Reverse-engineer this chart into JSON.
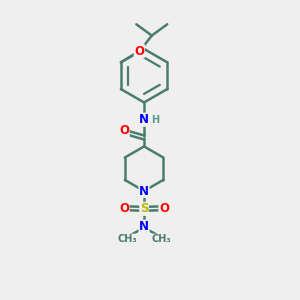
{
  "background_color": "#efefef",
  "bond_color": "#4a7c6f",
  "bond_width": 1.8,
  "atom_colors": {
    "O": "#ff0000",
    "N": "#0000ff",
    "S": "#bbbb00",
    "C": "#4a7c6f",
    "H": "#5a9a8a"
  },
  "font_size_atom": 8.5,
  "font_size_small": 7.0,
  "xlim": [
    0,
    10
  ],
  "ylim": [
    0,
    10
  ]
}
